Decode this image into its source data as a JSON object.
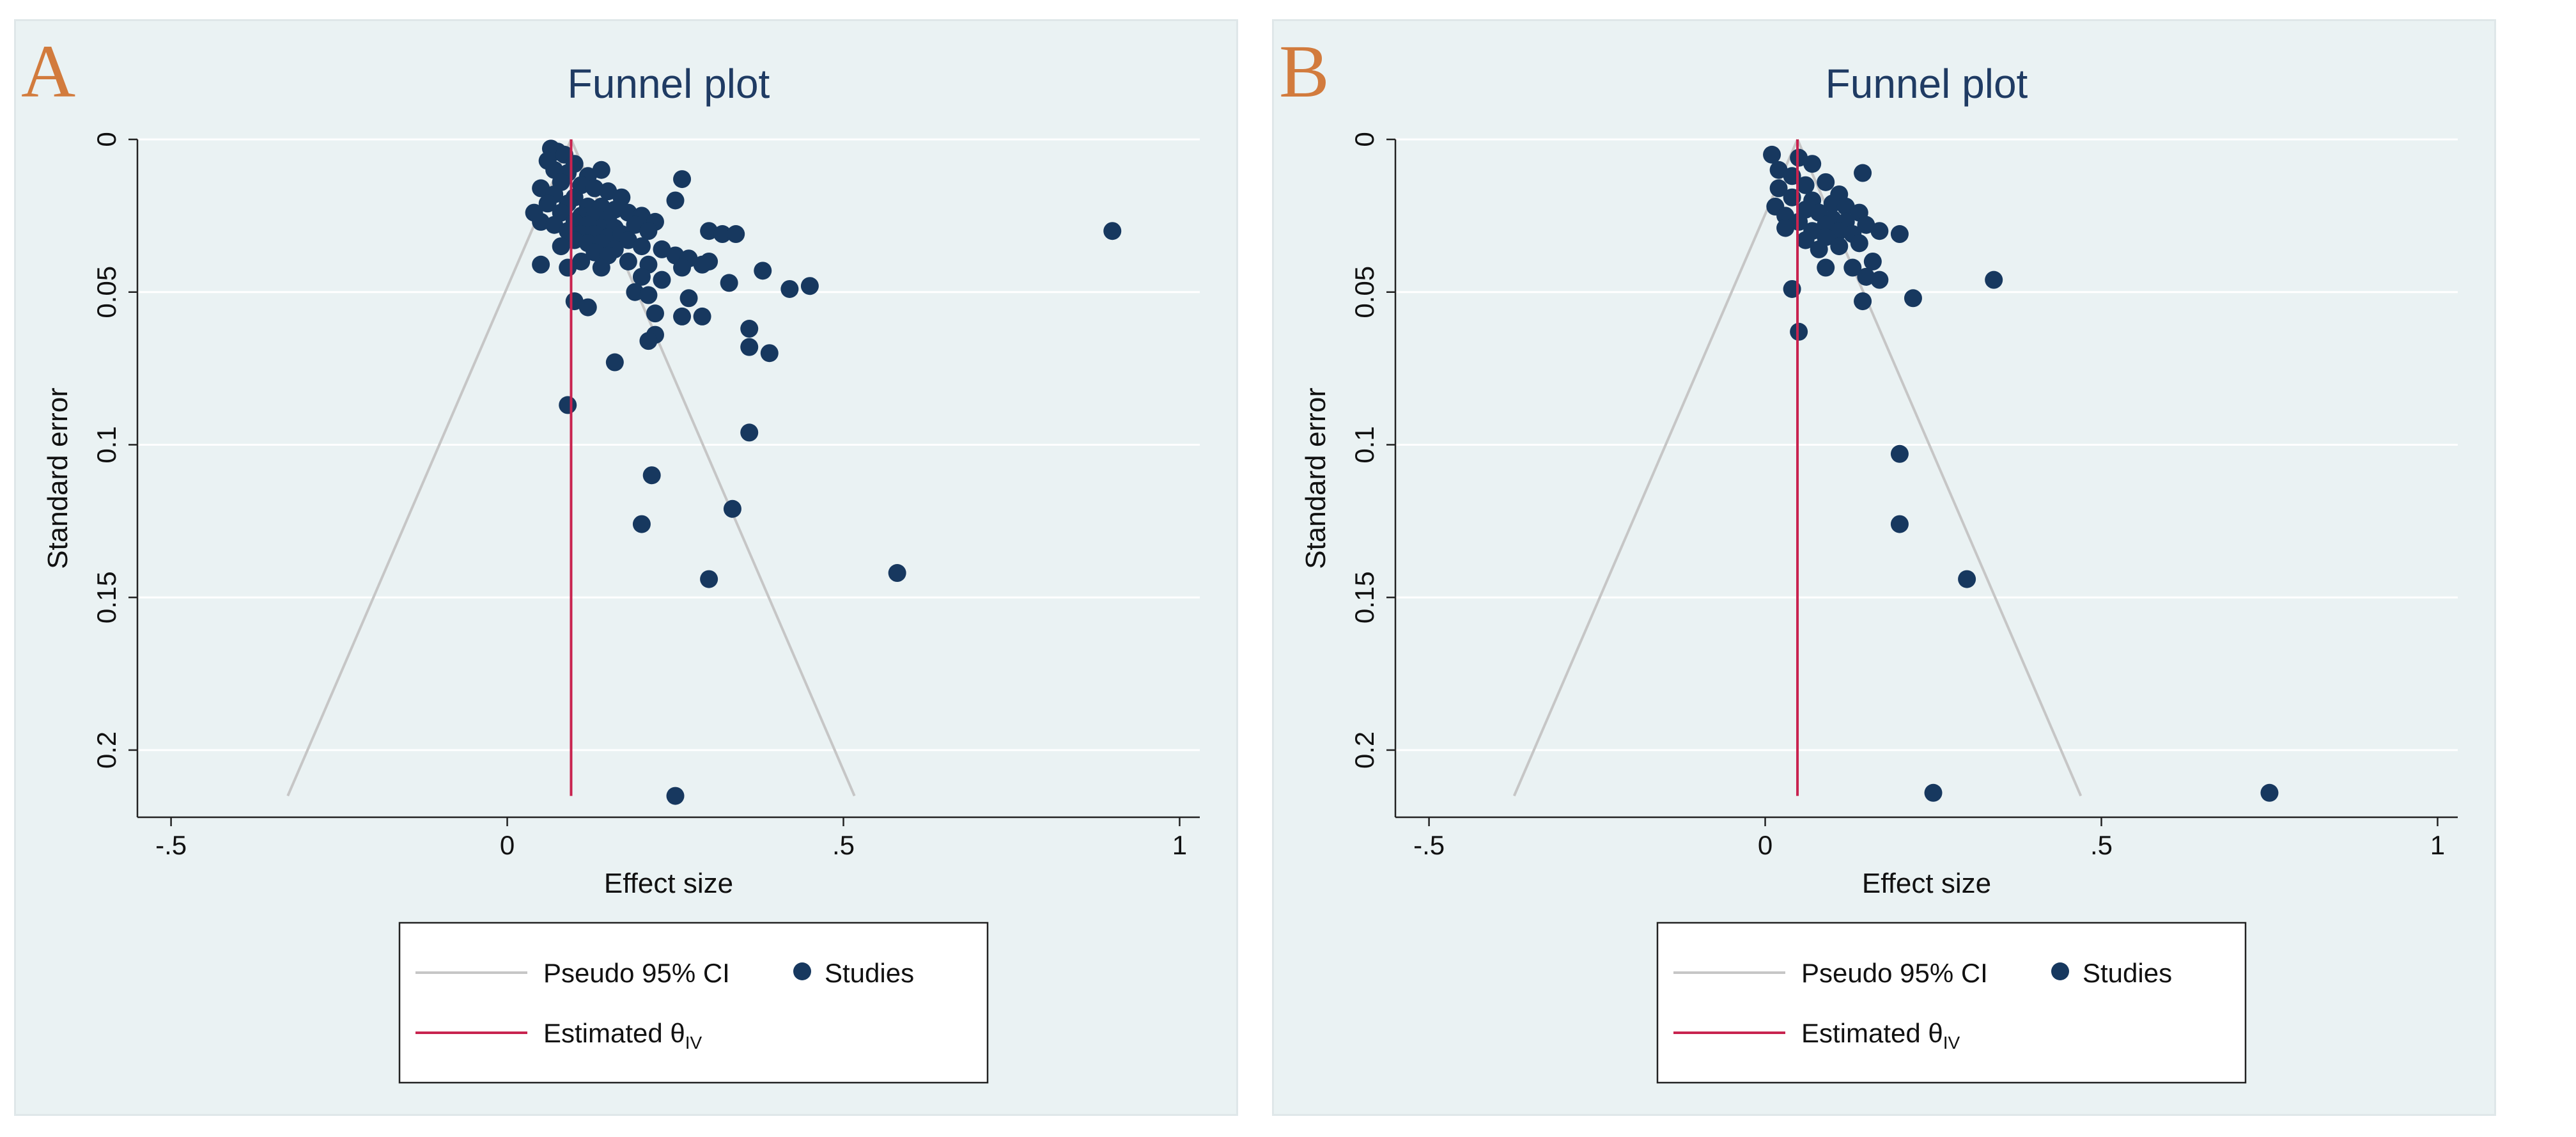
{
  "chart_data": [
    {
      "panel_letter": "A",
      "type": "scatter",
      "title": "Funnel plot",
      "xlabel": "Effect size",
      "ylabel": "Standard error",
      "xlim": [
        -0.55,
        1.03
      ],
      "ylim": [
        0,
        0.222
      ],
      "y_reversed": true,
      "grid": "horizontal",
      "xticks": [
        -0.5,
        0,
        0.5,
        1
      ],
      "xtick_labels": [
        "-.5",
        "0",
        ".5",
        "1"
      ],
      "yticks": [
        0,
        0.05,
        0.1,
        0.15,
        0.2
      ],
      "ytick_labels": [
        "0",
        "0.05",
        "0.1",
        "0.15",
        "0.2"
      ],
      "estimate": 0.095,
      "funnel_se_max": 0.215,
      "legend": {
        "ci_label": "Pseudo 95% CI",
        "studies_label": "Studies",
        "estimate_label": "Estimated θ",
        "estimate_sub": "IV",
        "placement": "bottom"
      },
      "colors": {
        "points": "#17385f",
        "estimate_line": "#c8234f",
        "ci_lines": "#c6c6c6",
        "grid": "#ffffff"
      },
      "points": [
        {
          "x": 0.065,
          "y": 0.003
        },
        {
          "x": 0.075,
          "y": 0.004
        },
        {
          "x": 0.085,
          "y": 0.005
        },
        {
          "x": 0.06,
          "y": 0.007
        },
        {
          "x": 0.1,
          "y": 0.008
        },
        {
          "x": 0.07,
          "y": 0.01
        },
        {
          "x": 0.09,
          "y": 0.011
        },
        {
          "x": 0.12,
          "y": 0.012
        },
        {
          "x": 0.14,
          "y": 0.01
        },
        {
          "x": 0.26,
          "y": 0.013
        },
        {
          "x": 0.08,
          "y": 0.014
        },
        {
          "x": 0.11,
          "y": 0.015
        },
        {
          "x": 0.05,
          "y": 0.016
        },
        {
          "x": 0.13,
          "y": 0.016
        },
        {
          "x": 0.15,
          "y": 0.017
        },
        {
          "x": 0.07,
          "y": 0.018
        },
        {
          "x": 0.1,
          "y": 0.019
        },
        {
          "x": 0.17,
          "y": 0.019
        },
        {
          "x": 0.25,
          "y": 0.02
        },
        {
          "x": 0.06,
          "y": 0.021
        },
        {
          "x": 0.09,
          "y": 0.021
        },
        {
          "x": 0.12,
          "y": 0.022
        },
        {
          "x": 0.14,
          "y": 0.022
        },
        {
          "x": 0.16,
          "y": 0.023
        },
        {
          "x": 0.04,
          "y": 0.024
        },
        {
          "x": 0.08,
          "y": 0.024
        },
        {
          "x": 0.11,
          "y": 0.025
        },
        {
          "x": 0.13,
          "y": 0.025
        },
        {
          "x": 0.15,
          "y": 0.026
        },
        {
          "x": 0.18,
          "y": 0.024
        },
        {
          "x": 0.2,
          "y": 0.025
        },
        {
          "x": 0.05,
          "y": 0.027
        },
        {
          "x": 0.07,
          "y": 0.028
        },
        {
          "x": 0.1,
          "y": 0.027
        },
        {
          "x": 0.12,
          "y": 0.028
        },
        {
          "x": 0.14,
          "y": 0.029
        },
        {
          "x": 0.16,
          "y": 0.029
        },
        {
          "x": 0.19,
          "y": 0.028
        },
        {
          "x": 0.22,
          "y": 0.027
        },
        {
          "x": 0.09,
          "y": 0.03
        },
        {
          "x": 0.11,
          "y": 0.031
        },
        {
          "x": 0.13,
          "y": 0.031
        },
        {
          "x": 0.15,
          "y": 0.032
        },
        {
          "x": 0.17,
          "y": 0.031
        },
        {
          "x": 0.21,
          "y": 0.03
        },
        {
          "x": 0.3,
          "y": 0.03
        },
        {
          "x": 0.32,
          "y": 0.031
        },
        {
          "x": 0.34,
          "y": 0.031
        },
        {
          "x": 0.1,
          "y": 0.033
        },
        {
          "x": 0.12,
          "y": 0.034
        },
        {
          "x": 0.14,
          "y": 0.034
        },
        {
          "x": 0.18,
          "y": 0.033
        },
        {
          "x": 0.08,
          "y": 0.035
        },
        {
          "x": 0.16,
          "y": 0.036
        },
        {
          "x": 0.2,
          "y": 0.035
        },
        {
          "x": 0.23,
          "y": 0.036
        },
        {
          "x": 0.13,
          "y": 0.037
        },
        {
          "x": 0.15,
          "y": 0.038
        },
        {
          "x": 0.25,
          "y": 0.038
        },
        {
          "x": 0.27,
          "y": 0.039
        },
        {
          "x": 0.3,
          "y": 0.04
        },
        {
          "x": 0.11,
          "y": 0.04
        },
        {
          "x": 0.18,
          "y": 0.04
        },
        {
          "x": 0.21,
          "y": 0.041
        },
        {
          "x": 0.05,
          "y": 0.041
        },
        {
          "x": 0.09,
          "y": 0.042
        },
        {
          "x": 0.14,
          "y": 0.042
        },
        {
          "x": 0.26,
          "y": 0.042
        },
        {
          "x": 0.29,
          "y": 0.041
        },
        {
          "x": 0.38,
          "y": 0.043
        },
        {
          "x": 0.2,
          "y": 0.045
        },
        {
          "x": 0.23,
          "y": 0.046
        },
        {
          "x": 0.33,
          "y": 0.047
        },
        {
          "x": 0.42,
          "y": 0.049
        },
        {
          "x": 0.45,
          "y": 0.048
        },
        {
          "x": 0.19,
          "y": 0.05
        },
        {
          "x": 0.21,
          "y": 0.051
        },
        {
          "x": 0.27,
          "y": 0.052
        },
        {
          "x": 0.1,
          "y": 0.053
        },
        {
          "x": 0.12,
          "y": 0.055
        },
        {
          "x": 0.22,
          "y": 0.057
        },
        {
          "x": 0.26,
          "y": 0.058
        },
        {
          "x": 0.29,
          "y": 0.058
        },
        {
          "x": 0.36,
          "y": 0.062
        },
        {
          "x": 0.22,
          "y": 0.064
        },
        {
          "x": 0.21,
          "y": 0.066
        },
        {
          "x": 0.36,
          "y": 0.068
        },
        {
          "x": 0.39,
          "y": 0.07
        },
        {
          "x": 0.16,
          "y": 0.073
        },
        {
          "x": 0.09,
          "y": 0.087
        },
        {
          "x": 0.9,
          "y": 0.03
        },
        {
          "x": 0.36,
          "y": 0.096
        },
        {
          "x": 0.215,
          "y": 0.11
        },
        {
          "x": 0.335,
          "y": 0.121
        },
        {
          "x": 0.2,
          "y": 0.126
        },
        {
          "x": 0.58,
          "y": 0.142
        },
        {
          "x": 0.3,
          "y": 0.144
        },
        {
          "x": 0.25,
          "y": 0.215
        }
      ]
    },
    {
      "panel_letter": "B",
      "type": "scatter",
      "title": "Funnel plot",
      "xlabel": "Effect size",
      "ylabel": "Standard error",
      "xlim": [
        -0.55,
        1.03
      ],
      "ylim": [
        0,
        0.222
      ],
      "y_reversed": true,
      "grid": "horizontal",
      "xticks": [
        -0.5,
        0,
        0.5,
        1
      ],
      "xtick_labels": [
        "-.5",
        "0",
        ".5",
        "1"
      ],
      "yticks": [
        0,
        0.05,
        0.1,
        0.15,
        0.2
      ],
      "ytick_labels": [
        "0",
        "0.05",
        "0.1",
        "0.15",
        "0.2"
      ],
      "estimate": 0.048,
      "funnel_se_max": 0.215,
      "legend": {
        "ci_label": "Pseudo 95% CI",
        "studies_label": "Studies",
        "estimate_label": "Estimated θ",
        "estimate_sub": "IV",
        "placement": "bottom"
      },
      "colors": {
        "points": "#17385f",
        "estimate_line": "#c8234f",
        "ci_lines": "#c6c6c6",
        "grid": "#ffffff"
      },
      "points": [
        {
          "x": 0.01,
          "y": 0.005
        },
        {
          "x": 0.05,
          "y": 0.006
        },
        {
          "x": 0.07,
          "y": 0.008
        },
        {
          "x": 0.02,
          "y": 0.01
        },
        {
          "x": 0.04,
          "y": 0.012
        },
        {
          "x": 0.145,
          "y": 0.011
        },
        {
          "x": 0.09,
          "y": 0.014
        },
        {
          "x": 0.06,
          "y": 0.015
        },
        {
          "x": 0.02,
          "y": 0.016
        },
        {
          "x": 0.11,
          "y": 0.018
        },
        {
          "x": 0.04,
          "y": 0.019
        },
        {
          "x": 0.07,
          "y": 0.02
        },
        {
          "x": 0.1,
          "y": 0.021
        },
        {
          "x": 0.015,
          "y": 0.022
        },
        {
          "x": 0.12,
          "y": 0.022
        },
        {
          "x": 0.06,
          "y": 0.023
        },
        {
          "x": 0.08,
          "y": 0.024
        },
        {
          "x": 0.14,
          "y": 0.024
        },
        {
          "x": 0.03,
          "y": 0.025
        },
        {
          "x": 0.1,
          "y": 0.026
        },
        {
          "x": 0.05,
          "y": 0.027
        },
        {
          "x": 0.12,
          "y": 0.027
        },
        {
          "x": 0.09,
          "y": 0.028
        },
        {
          "x": 0.15,
          "y": 0.028
        },
        {
          "x": 0.03,
          "y": 0.029
        },
        {
          "x": 0.07,
          "y": 0.03
        },
        {
          "x": 0.11,
          "y": 0.03
        },
        {
          "x": 0.13,
          "y": 0.031
        },
        {
          "x": 0.2,
          "y": 0.031
        },
        {
          "x": 0.17,
          "y": 0.03
        },
        {
          "x": 0.09,
          "y": 0.032
        },
        {
          "x": 0.06,
          "y": 0.033
        },
        {
          "x": 0.14,
          "y": 0.034
        },
        {
          "x": 0.11,
          "y": 0.035
        },
        {
          "x": 0.08,
          "y": 0.036
        },
        {
          "x": 0.16,
          "y": 0.04
        },
        {
          "x": 0.13,
          "y": 0.042
        },
        {
          "x": 0.09,
          "y": 0.042
        },
        {
          "x": 0.15,
          "y": 0.045
        },
        {
          "x": 0.17,
          "y": 0.046
        },
        {
          "x": 0.34,
          "y": 0.046
        },
        {
          "x": 0.04,
          "y": 0.049
        },
        {
          "x": 0.22,
          "y": 0.052
        },
        {
          "x": 0.145,
          "y": 0.053
        },
        {
          "x": 0.05,
          "y": 0.063
        },
        {
          "x": 0.2,
          "y": 0.103
        },
        {
          "x": 0.2,
          "y": 0.126
        },
        {
          "x": 0.3,
          "y": 0.144
        },
        {
          "x": 0.25,
          "y": 0.214
        },
        {
          "x": 0.75,
          "y": 0.214
        }
      ]
    }
  ]
}
